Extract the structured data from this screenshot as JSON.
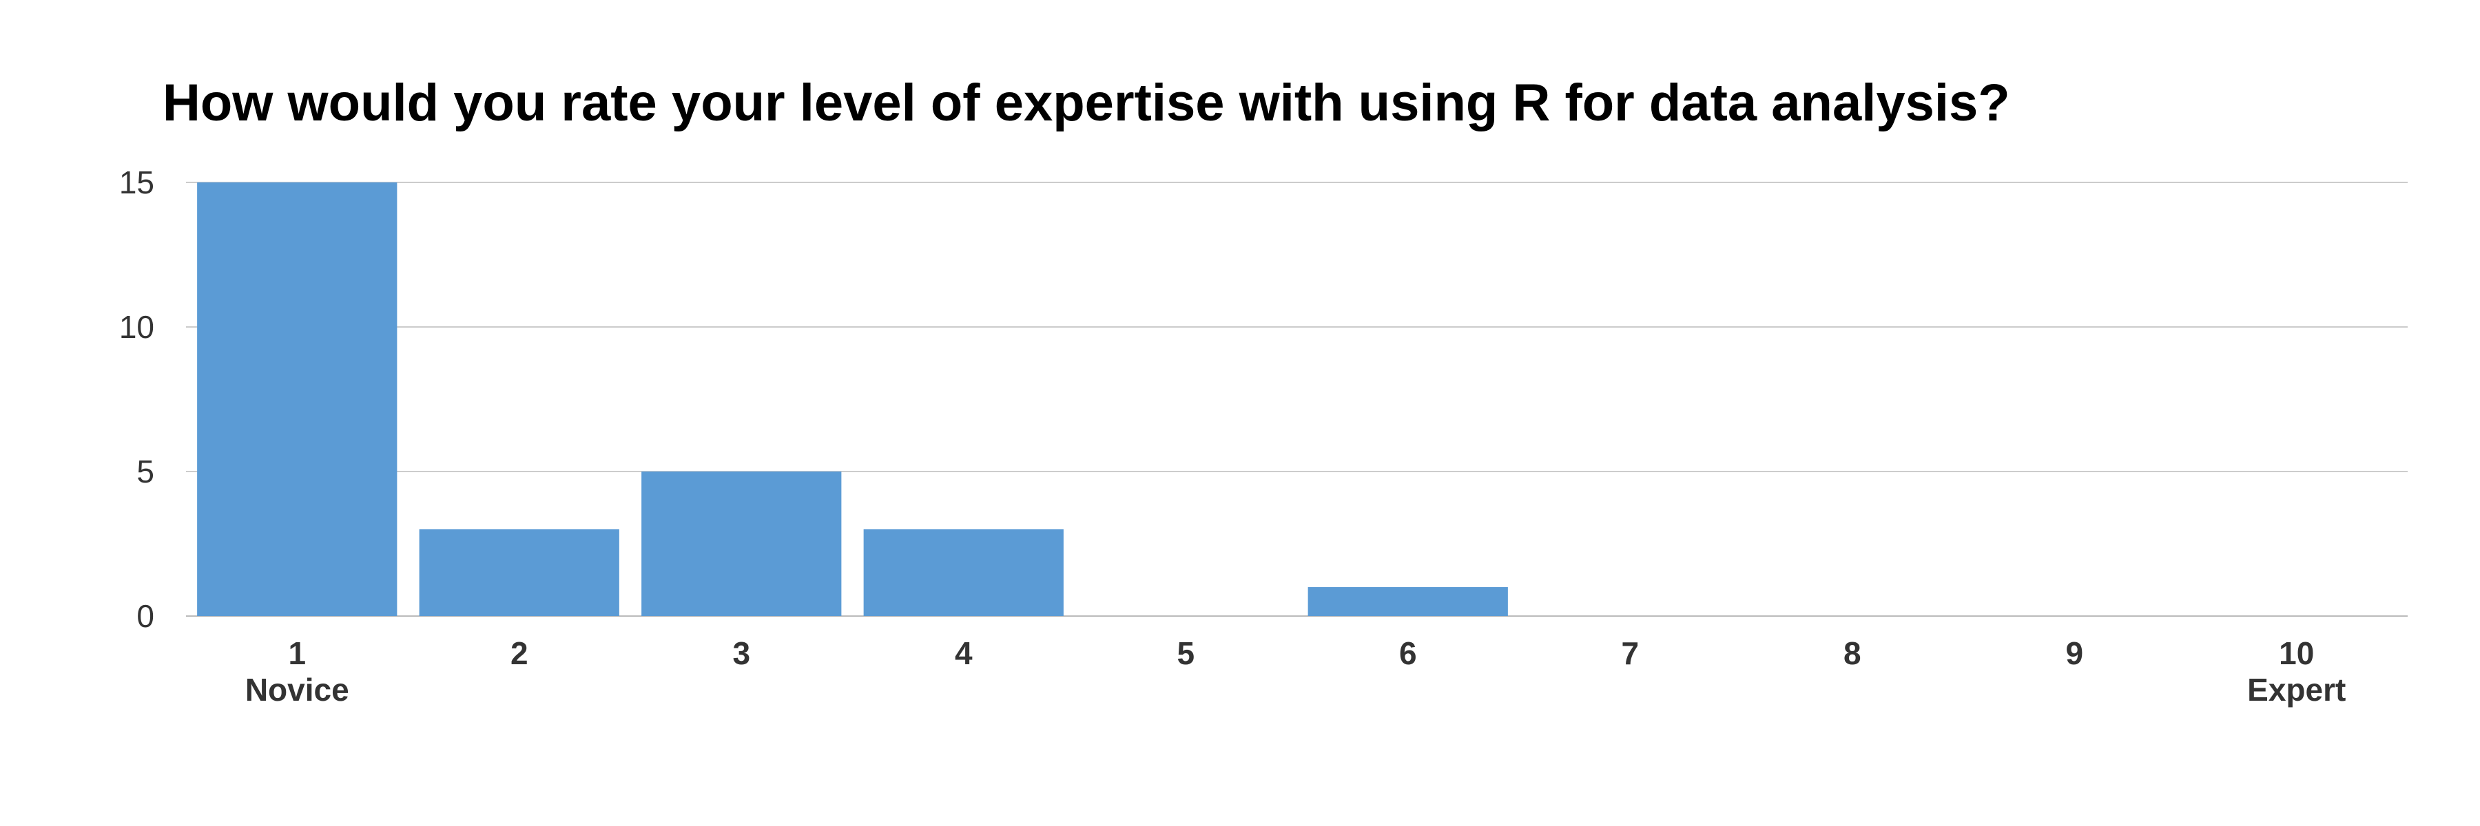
{
  "chart_data": {
    "type": "bar",
    "title": "How would you rate your level of expertise with using R for data analysis?",
    "categories": [
      "1",
      "2",
      "3",
      "4",
      "5",
      "6",
      "7",
      "8",
      "9",
      "10"
    ],
    "category_sublabels": [
      "Novice",
      "",
      "",
      "",
      "",
      "",
      "",
      "",
      "",
      "Expert"
    ],
    "values": [
      15,
      3,
      5,
      3,
      0,
      1,
      0,
      0,
      0,
      0
    ],
    "xlabel": "",
    "ylabel": "",
    "ylim": [
      0,
      15
    ],
    "yticks": [
      "0",
      "5",
      "10",
      "15"
    ],
    "grid": true,
    "legend": "none",
    "bar_color": "#5b9bd5"
  }
}
